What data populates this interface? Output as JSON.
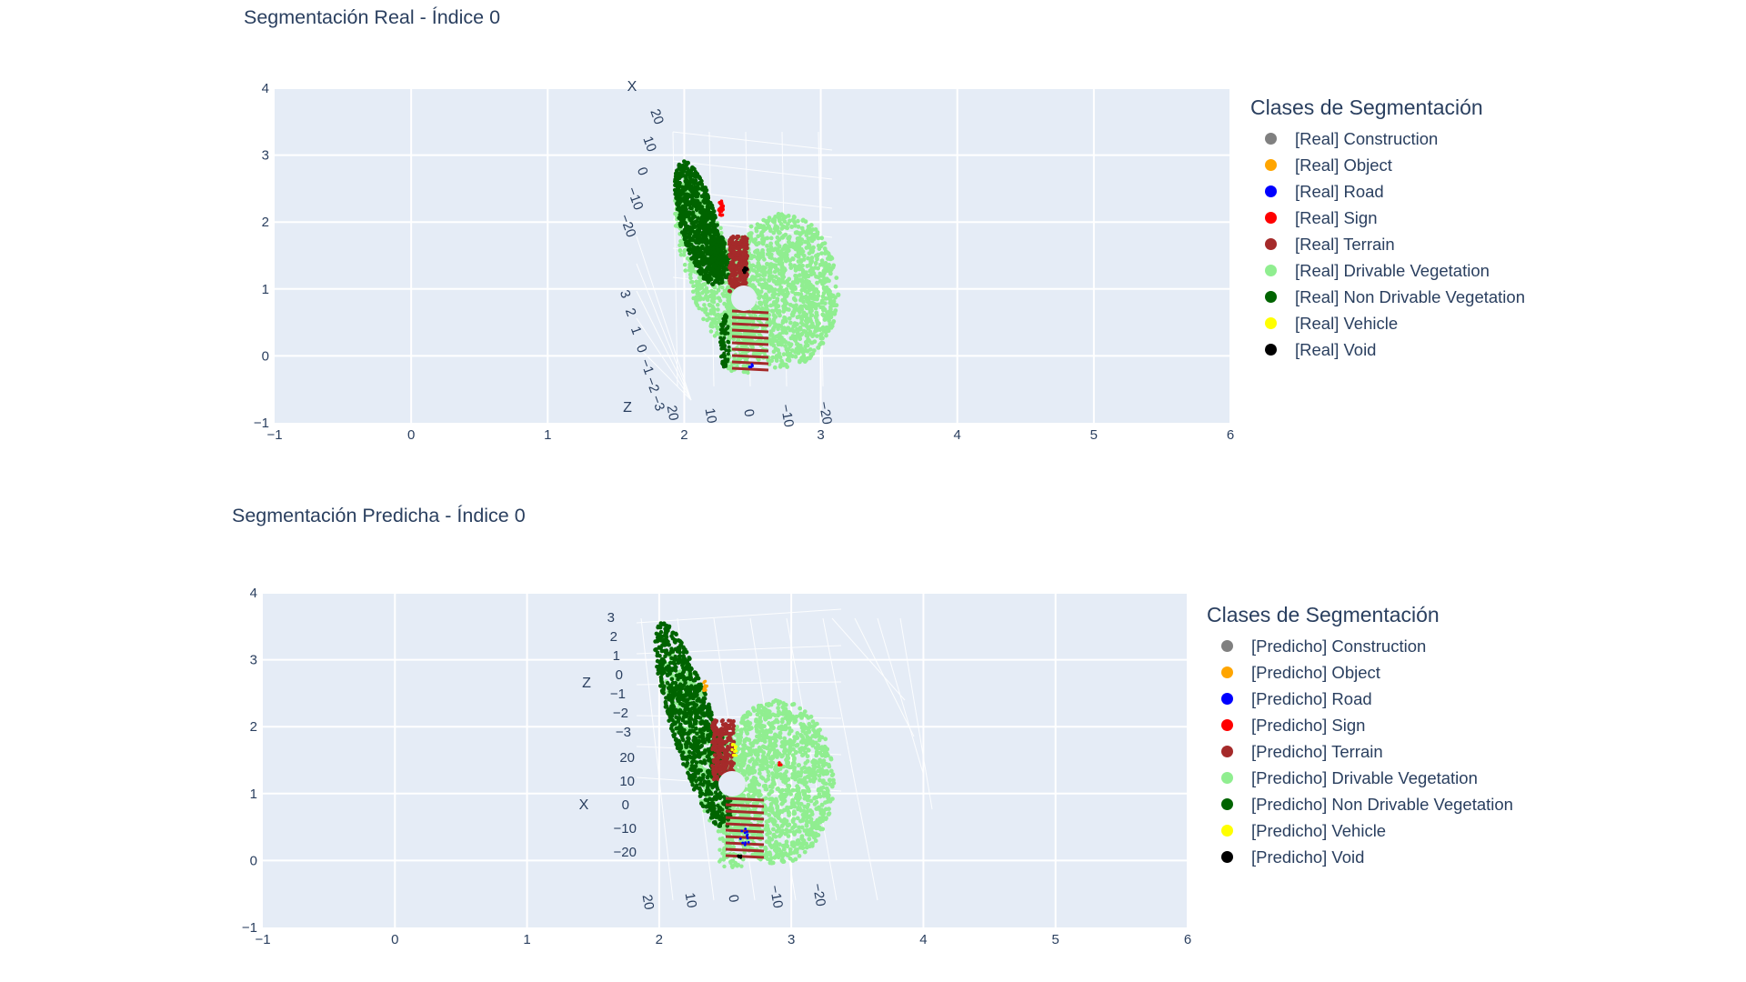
{
  "chart_data": [
    {
      "type": "scatter",
      "title": "Segmentación Real - Índice 0",
      "xlim": [
        -1,
        6
      ],
      "ylim": [
        -1,
        4
      ],
      "x_ticks": [
        "−1",
        "0",
        "1",
        "2",
        "3",
        "4",
        "5",
        "6"
      ],
      "y_ticks": [
        "−1",
        "0",
        "1",
        "2",
        "3",
        "4"
      ],
      "scene": {
        "axis_a": {
          "label": "X",
          "ticks": [
            "20",
            "10",
            "0",
            "−10",
            "−20"
          ]
        },
        "axis_b": {
          "label": "Z",
          "ticks": [
            "3",
            "2",
            "1",
            "0",
            "−1",
            "−2",
            "−3"
          ]
        },
        "axis_c": {
          "ticks": [
            "20",
            "10",
            "0",
            "−10",
            "−20"
          ]
        }
      },
      "legend": {
        "title": "Clases de Segmentación",
        "items": [
          {
            "label": "[Real] Construction",
            "color": "#808080"
          },
          {
            "label": "[Real] Object",
            "color": "#ffa500"
          },
          {
            "label": "[Real] Road",
            "color": "#0000ff"
          },
          {
            "label": "[Real] Sign",
            "color": "#ff0000"
          },
          {
            "label": "[Real] Terrain",
            "color": "#a52a2a"
          },
          {
            "label": "[Real] Drivable Vegetation",
            "color": "#90ee90"
          },
          {
            "label": "[Real] Non Drivable Vegetation",
            "color": "#006400"
          },
          {
            "label": "[Real] Vehicle",
            "color": "#ffff00"
          },
          {
            "label": "[Real] Void",
            "color": "#000000"
          }
        ]
      }
    },
    {
      "type": "scatter",
      "title": "Segmentación Predicha - Índice 0",
      "xlim": [
        -1,
        6
      ],
      "ylim": [
        -1,
        4
      ],
      "x_ticks": [
        "−1",
        "0",
        "1",
        "2",
        "3",
        "4",
        "5",
        "6"
      ],
      "y_ticks": [
        "−1",
        "0",
        "1",
        "2",
        "3",
        "4"
      ],
      "scene": {
        "axis_a": {
          "label": "Z",
          "ticks": [
            "3",
            "2",
            "1",
            "0",
            "−1",
            "−2",
            "−3"
          ]
        },
        "axis_b": {
          "label": "X",
          "ticks": [
            "20",
            "10",
            "0",
            "−10",
            "−20"
          ]
        },
        "axis_c": {
          "ticks": [
            "20",
            "10",
            "0",
            "−10",
            "−20"
          ]
        }
      },
      "legend": {
        "title": "Clases de Segmentación",
        "items": [
          {
            "label": "[Predicho] Construction",
            "color": "#808080"
          },
          {
            "label": "[Predicho] Object",
            "color": "#ffa500"
          },
          {
            "label": "[Predicho] Road",
            "color": "#0000ff"
          },
          {
            "label": "[Predicho] Sign",
            "color": "#ff0000"
          },
          {
            "label": "[Predicho] Terrain",
            "color": "#a52a2a"
          },
          {
            "label": "[Predicho] Drivable Vegetation",
            "color": "#90ee90"
          },
          {
            "label": "[Predicho] Non Drivable Vegetation",
            "color": "#006400"
          },
          {
            "label": "[Predicho] Vehicle",
            "color": "#ffff00"
          },
          {
            "label": "[Predicho] Void",
            "color": "#000000"
          }
        ]
      }
    }
  ]
}
